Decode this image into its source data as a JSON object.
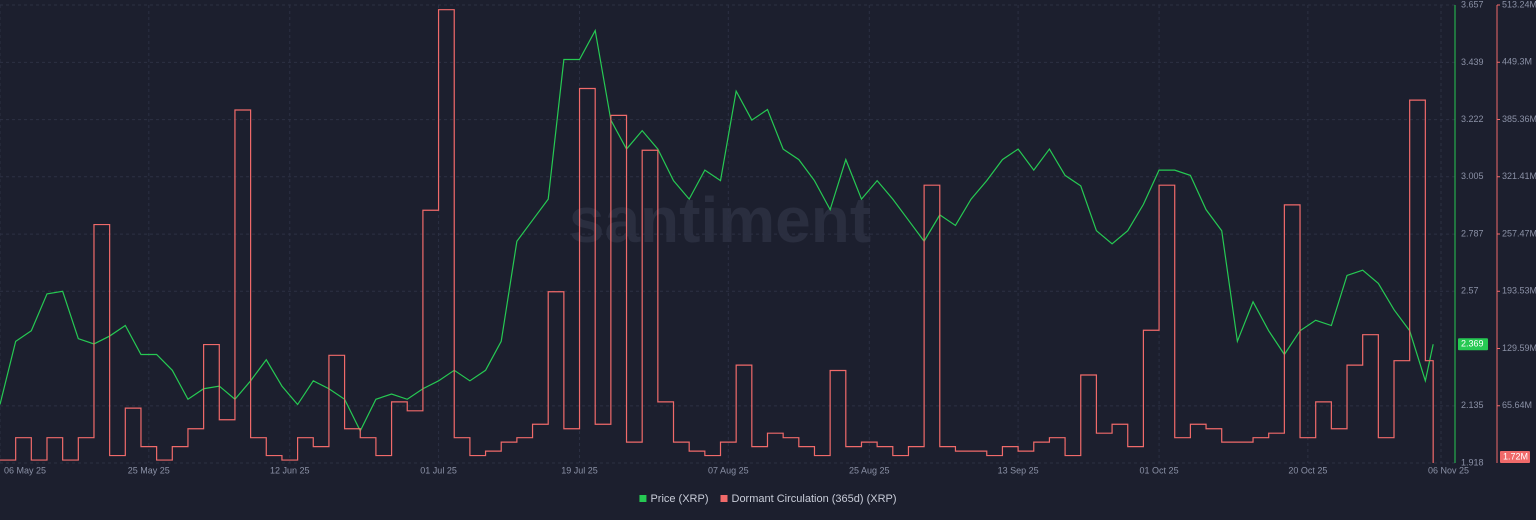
{
  "chart_data": {
    "type": "line",
    "watermark": "santiment",
    "x": [
      "2025-05-06",
      "2025-05-08",
      "2025-05-10",
      "2025-05-12",
      "2025-05-14",
      "2025-05-16",
      "2025-05-18",
      "2025-05-20",
      "2025-05-22",
      "2025-05-24",
      "2025-05-26",
      "2025-05-28",
      "2025-05-30",
      "2025-06-01",
      "2025-06-03",
      "2025-06-05",
      "2025-06-07",
      "2025-06-09",
      "2025-06-11",
      "2025-06-13",
      "2025-06-15",
      "2025-06-17",
      "2025-06-19",
      "2025-06-21",
      "2025-06-23",
      "2025-06-25",
      "2025-06-27",
      "2025-06-29",
      "2025-07-01",
      "2025-07-03",
      "2025-07-05",
      "2025-07-07",
      "2025-07-09",
      "2025-07-11",
      "2025-07-13",
      "2025-07-15",
      "2025-07-17",
      "2025-07-19",
      "2025-07-21",
      "2025-07-23",
      "2025-07-25",
      "2025-07-27",
      "2025-07-29",
      "2025-07-31",
      "2025-08-02",
      "2025-08-04",
      "2025-08-06",
      "2025-08-08",
      "2025-08-10",
      "2025-08-12",
      "2025-08-14",
      "2025-08-16",
      "2025-08-18",
      "2025-08-20",
      "2025-08-22",
      "2025-08-24",
      "2025-08-26",
      "2025-08-28",
      "2025-08-30",
      "2025-09-01",
      "2025-09-03",
      "2025-09-05",
      "2025-09-07",
      "2025-09-09",
      "2025-09-11",
      "2025-09-13",
      "2025-09-15",
      "2025-09-17",
      "2025-09-19",
      "2025-09-21",
      "2025-09-23",
      "2025-09-25",
      "2025-09-27",
      "2025-09-29",
      "2025-10-01",
      "2025-10-03",
      "2025-10-05",
      "2025-10-07",
      "2025-10-09",
      "2025-10-11",
      "2025-10-13",
      "2025-10-15",
      "2025-10-17",
      "2025-10-19",
      "2025-10-21",
      "2025-10-23",
      "2025-10-25",
      "2025-10-27",
      "2025-10-29",
      "2025-10-31",
      "2025-11-02",
      "2025-11-04",
      "2025-11-05"
    ],
    "xlim": [
      "2025-05-06",
      "2025-11-06"
    ],
    "xticks": [
      {
        "value": "2025-05-06",
        "label": "06 May 25"
      },
      {
        "value": "2025-05-25",
        "label": "25 May 25"
      },
      {
        "value": "2025-06-12",
        "label": "12 Jun 25"
      },
      {
        "value": "2025-07-01",
        "label": "01 Jul 25"
      },
      {
        "value": "2025-07-19",
        "label": "19 Jul 25"
      },
      {
        "value": "2025-08-07",
        "label": "07 Aug 25"
      },
      {
        "value": "2025-08-25",
        "label": "25 Aug 25"
      },
      {
        "value": "2025-09-13",
        "label": "13 Sep 25"
      },
      {
        "value": "2025-10-01",
        "label": "01 Oct 25"
      },
      {
        "value": "2025-10-20",
        "label": "20 Oct 25"
      },
      {
        "value": "2025-11-06",
        "label": "06 Nov 25"
      }
    ],
    "ylim": [
      1.918,
      3.657
    ],
    "yticks": [
      1.918,
      2.135,
      2.57,
      2.787,
      3.005,
      3.222,
      3.439,
      3.657
    ],
    "y2lim": [
      1.72,
      513.24
    ],
    "y2ticks": [
      {
        "value": 65.64,
        "label": "65.64M"
      },
      {
        "value": 129.59,
        "label": "129.59M"
      },
      {
        "value": 193.53,
        "label": "193.53M"
      },
      {
        "value": 257.47,
        "label": "257.47M"
      },
      {
        "value": 321.41,
        "label": "321.41M"
      },
      {
        "value": 385.36,
        "label": "385.36M"
      },
      {
        "value": 449.3,
        "label": "449.3M"
      },
      {
        "value": 513.24,
        "label": "513.24M"
      }
    ],
    "grid": true,
    "legend": "bottom",
    "series": [
      {
        "name": "Price (XRP)",
        "color": "#26c953",
        "values": [
          2.14,
          2.38,
          2.42,
          2.56,
          2.57,
          2.39,
          2.37,
          2.4,
          2.44,
          2.33,
          2.33,
          2.27,
          2.16,
          2.2,
          2.21,
          2.16,
          2.23,
          2.31,
          2.21,
          2.14,
          2.23,
          2.2,
          2.16,
          2.04,
          2.16,
          2.18,
          2.16,
          2.2,
          2.23,
          2.27,
          2.23,
          2.27,
          2.38,
          2.76,
          2.84,
          2.92,
          3.45,
          3.45,
          3.56,
          3.22,
          3.11,
          3.18,
          3.11,
          2.99,
          2.92,
          3.03,
          2.99,
          3.33,
          3.22,
          3.26,
          3.11,
          3.07,
          2.99,
          2.88,
          3.07,
          2.92,
          2.99,
          2.92,
          2.84,
          2.76,
          2.86,
          2.82,
          2.92,
          2.99,
          3.07,
          3.11,
          3.03,
          3.11,
          3.01,
          2.97,
          2.8,
          2.75,
          2.8,
          2.9,
          3.03,
          3.03,
          3.01,
          2.88,
          2.8,
          2.38,
          2.53,
          2.42,
          2.33,
          2.42,
          2.46,
          2.44,
          2.63,
          2.65,
          2.6,
          2.5,
          2.42,
          2.23,
          2.369
        ]
      },
      {
        "name": "Dormant Circulation (365d) (XRP)",
        "color": "#f06a6a",
        "axis": "y2",
        "last_label": "1.72M",
        "values": [
          5,
          30,
          5,
          30,
          5,
          30,
          268,
          10,
          63,
          20,
          5,
          20,
          40,
          134,
          50,
          396,
          30,
          10,
          5,
          30,
          20,
          122,
          40,
          30,
          10,
          70,
          60,
          284,
          508,
          30,
          10,
          15,
          25,
          30,
          45,
          193,
          40,
          420,
          45,
          390,
          25,
          351,
          70,
          25,
          15,
          10,
          25,
          111,
          20,
          35,
          30,
          20,
          10,
          105,
          20,
          25,
          20,
          10,
          20,
          312,
          20,
          15,
          15,
          10,
          20,
          15,
          25,
          30,
          10,
          100,
          35,
          45,
          20,
          150,
          312,
          30,
          45,
          40,
          25,
          25,
          30,
          35,
          290,
          30,
          70,
          40,
          111,
          145,
          30,
          116,
          407,
          116,
          1.72
        ]
      }
    ]
  }
}
